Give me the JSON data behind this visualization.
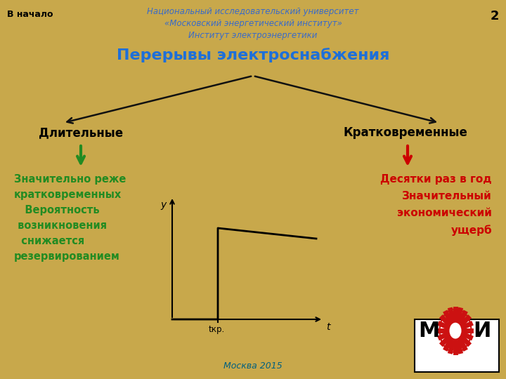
{
  "background_color": "#C8A84B",
  "title_top_left": "В начало",
  "title_top_center_line1": "Национальный исследовательский университет",
  "title_top_center_line2": "«Московский энергетический институт»",
  "title_top_center_line3": "Институт электроэнергетики",
  "slide_number": "2",
  "main_title": "Перерывы электроснабжения",
  "left_label": "Длительные",
  "right_label": "Кратковременные",
  "left_text_line1": "Значительно реже",
  "left_text_line2": "кратковременных",
  "left_text_line3": "   Вероятность",
  "left_text_line4": " возникновения",
  "left_text_line5": "  снижается",
  "left_text_line6": "резервированием",
  "right_text_line1": "Десятки раз в год",
  "right_text_line2": "Значительный",
  "right_text_line3": "экономический",
  "right_text_line4": "ущерб",
  "footer_text": "Москва 2015",
  "graph_xlabel": "t",
  "graph_ylabel": "y",
  "graph_xticklabel": "tкр.",
  "top_center_color": "#3A6BC8",
  "main_title_color": "#1E6FD9",
  "left_label_color": "#000000",
  "right_label_color": "#000000",
  "left_text_color": "#228B22",
  "right_text_color": "#CC0000",
  "footer_color": "#006080",
  "green_arrow_color": "#228B22",
  "red_arrow_color": "#CC0000",
  "black_arrow_color": "#111111"
}
